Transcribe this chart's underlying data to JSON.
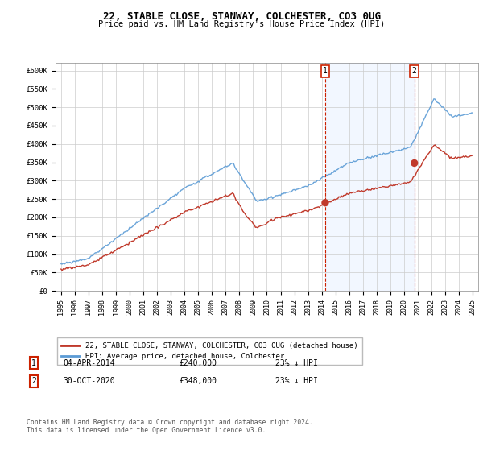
{
  "title": "22, STABLE CLOSE, STANWAY, COLCHESTER, CO3 0UG",
  "subtitle": "Price paid vs. HM Land Registry's House Price Index (HPI)",
  "ylabel_ticks": [
    "£0",
    "£50K",
    "£100K",
    "£150K",
    "£200K",
    "£250K",
    "£300K",
    "£350K",
    "£400K",
    "£450K",
    "£500K",
    "£550K",
    "£600K"
  ],
  "ylim": [
    0,
    620000
  ],
  "yticks": [
    0,
    50000,
    100000,
    150000,
    200000,
    250000,
    300000,
    350000,
    400000,
    450000,
    500000,
    550000,
    600000
  ],
  "hpi_color": "#5b9bd5",
  "price_color": "#c0392b",
  "shade_color": "#ddeeff",
  "legend_label_price": "22, STABLE CLOSE, STANWAY, COLCHESTER, CO3 0UG (detached house)",
  "legend_label_hpi": "HPI: Average price, detached house, Colchester",
  "note1_label": "1",
  "note1_date": "04-APR-2014",
  "note1_price": "£240,000",
  "note1_hpi": "23% ↓ HPI",
  "note2_label": "2",
  "note2_date": "30-OCT-2020",
  "note2_price": "£348,000",
  "note2_hpi": "23% ↓ HPI",
  "footer": "Contains HM Land Registry data © Crown copyright and database right 2024.\nThis data is licensed under the Open Government Licence v3.0.",
  "background_color": "#ffffff",
  "grid_color": "#cccccc",
  "sale1_year": 2014.25,
  "sale1_value": 240000,
  "sale2_year": 2020.75,
  "sale2_value": 348000
}
